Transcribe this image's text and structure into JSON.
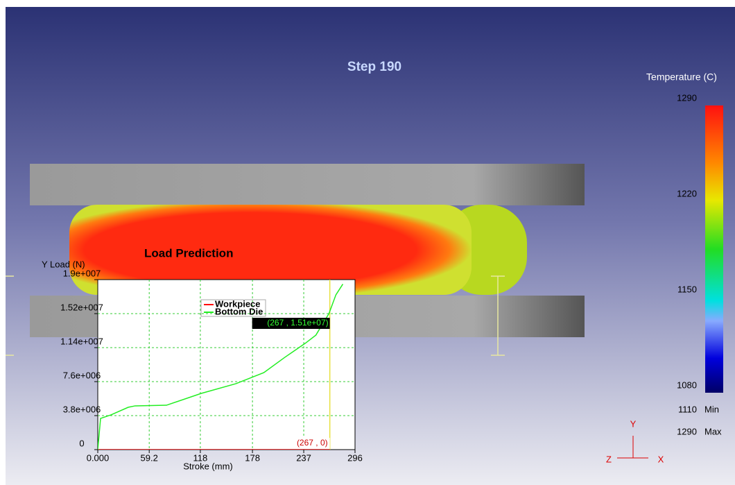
{
  "step_title": "Step 190",
  "temperature_legend": {
    "title": "Temperature (C)",
    "ticks": [
      1290,
      1220,
      1150,
      1080
    ],
    "min": {
      "value": 1110,
      "label": "Min"
    },
    "max": {
      "value": 1290,
      "label": "Max"
    }
  },
  "chart": {
    "type": "line",
    "title": "Load Prediction",
    "y_label": "Y Load (N)",
    "x_label": "Stroke (mm)",
    "xlim": [
      0,
      296
    ],
    "ylim": [
      0,
      19000000
    ],
    "xticks": [
      {
        "value": 0,
        "label": "0.000"
      },
      59.2,
      118,
      178,
      237,
      296
    ],
    "yticks": [
      0,
      {
        "value": 3800000,
        "label": "3.8e+006"
      },
      {
        "value": 7600000,
        "label": "7.6e+006"
      },
      {
        "value": 11400000,
        "label": "1.14e+007"
      },
      {
        "value": 15200000,
        "label": "1.52e+007"
      },
      {
        "value": 19000000,
        "label": "1.9e+007"
      }
    ],
    "grid": true,
    "series": [
      {
        "name": "Workpiece",
        "color": "#ff0000",
        "x": [
          0,
          267
        ],
        "values": [
          0,
          0
        ]
      },
      {
        "name": "Bottom Die",
        "color": "#22ee22",
        "x": [
          0,
          3.2,
          15.2,
          35,
          43,
          79,
          119,
          159,
          191,
          215,
          239,
          251,
          259,
          266,
          274,
          282
        ],
        "values": [
          0,
          3490000,
          3880000,
          4730000,
          4890000,
          4960000,
          6280000,
          7370000,
          8600000,
          10300000,
          11900000,
          12800000,
          14100000,
          15200000,
          17300000,
          18500000
        ]
      }
    ],
    "cursor": {
      "x": 267,
      "top_label": "(267 , 1.51e+07)",
      "bottom_label": "(267 , 0)"
    }
  },
  "axis_triad": {
    "y": "Y",
    "z": "Z",
    "x": "X"
  }
}
